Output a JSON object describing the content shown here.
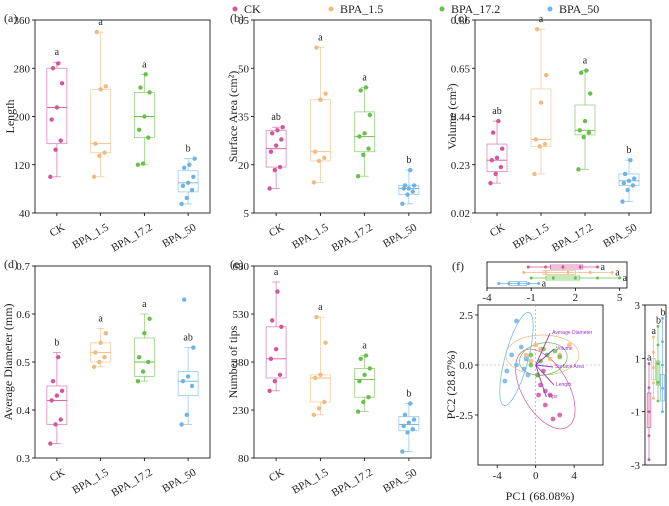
{
  "colors": {
    "CK": "#d4559c",
    "BPA_1.5": "#f3b97f",
    "BPA_17.2": "#6abf4b",
    "BPA_50": "#6fb3e6",
    "vector": "#9933cc"
  },
  "legend": {
    "items": [
      "CK",
      "BPA_1.5",
      "BPA_17.2",
      "BPA_50"
    ]
  },
  "chart_data": [
    {
      "id": "a",
      "panel_label": "(a)",
      "type": "box",
      "ylabel": "Length",
      "ylim": [
        40,
        360
      ],
      "yticks": [
        "40",
        "120",
        "200",
        "280",
        "360"
      ],
      "categories": [
        "CK",
        "BPA_1.5",
        "BPA_17.2",
        "BPA_50"
      ],
      "boxes": [
        {
          "min": 100,
          "q1": 155,
          "median": 215,
          "q3": 280,
          "max": 290,
          "letter": "a",
          "points": [
            100,
            145,
            160,
            195,
            215,
            255,
            280,
            288
          ]
        },
        {
          "min": 100,
          "q1": 140,
          "median": 155,
          "q3": 245,
          "max": 340,
          "letter": "a",
          "points": [
            100,
            135,
            140,
            155,
            245,
            250,
            340
          ]
        },
        {
          "min": 120,
          "q1": 165,
          "median": 200,
          "q3": 240,
          "max": 270,
          "letter": "a",
          "points": [
            120,
            122,
            165,
            178,
            200,
            240,
            248,
            270
          ]
        },
        {
          "min": 55,
          "q1": 75,
          "median": 90,
          "q3": 110,
          "max": 130,
          "letter": "b",
          "points": [
            55,
            65,
            78,
            85,
            90,
            100,
            115,
            120,
            130
          ]
        }
      ]
    },
    {
      "id": "b",
      "panel_label": "(b)",
      "type": "box",
      "ylabel": "Surface Area (cm²)",
      "ylim": [
        5,
        68
      ],
      "yticks": [
        "5",
        "20",
        "35",
        "50",
        "65"
      ],
      "categories": [
        "CK",
        "BPA_1.5",
        "BPA_17.2",
        "BPA_50"
      ],
      "boxes": [
        {
          "min": 13,
          "q1": 20,
          "median": 26,
          "q3": 32,
          "max": 33,
          "letter": "ab",
          "points": [
            13,
            19,
            20,
            25,
            27,
            29,
            31,
            32,
            33
          ]
        },
        {
          "min": 15,
          "q1": 22,
          "median": 25,
          "q3": 42,
          "max": 59,
          "letter": "a",
          "points": [
            15,
            22,
            23,
            25,
            42,
            44,
            59
          ]
        },
        {
          "min": 17,
          "q1": 25,
          "median": 30,
          "q3": 38,
          "max": 46,
          "letter": "a",
          "points": [
            17,
            24,
            26,
            30,
            31,
            37,
            45,
            46
          ]
        },
        {
          "min": 8,
          "q1": 11,
          "median": 13,
          "q3": 14,
          "max": 19,
          "letter": "b",
          "points": [
            8,
            11,
            12,
            13,
            13,
            14,
            14,
            19
          ]
        }
      ]
    },
    {
      "id": "c",
      "panel_label": "(c)",
      "type": "box",
      "ylabel": "Volume (cm³)",
      "ylim": [
        0.02,
        0.86
      ],
      "yticks": [
        "0.02",
        "0.23",
        "0.44",
        "0.65",
        "0.86"
      ],
      "categories": [
        "CK",
        "BPA_1.5",
        "BPA_17.2",
        "BPA_50"
      ],
      "boxes": [
        {
          "min": 0.15,
          "q1": 0.2,
          "median": 0.25,
          "q3": 0.32,
          "max": 0.42,
          "letter": "ab",
          "points": [
            0.15,
            0.19,
            0.22,
            0.25,
            0.26,
            0.3,
            0.37,
            0.42
          ]
        },
        {
          "min": 0.19,
          "q1": 0.31,
          "median": 0.34,
          "q3": 0.56,
          "max": 0.82,
          "letter": "a",
          "points": [
            0.19,
            0.31,
            0.32,
            0.34,
            0.5,
            0.62,
            0.82
          ]
        },
        {
          "min": 0.21,
          "q1": 0.36,
          "median": 0.38,
          "q3": 0.49,
          "max": 0.64,
          "letter": "a",
          "points": [
            0.21,
            0.35,
            0.37,
            0.38,
            0.42,
            0.54,
            0.63,
            0.64
          ]
        },
        {
          "min": 0.07,
          "q1": 0.14,
          "median": 0.16,
          "q3": 0.19,
          "max": 0.25,
          "letter": "b",
          "points": [
            0.07,
            0.12,
            0.14,
            0.15,
            0.16,
            0.17,
            0.19,
            0.25
          ]
        }
      ]
    },
    {
      "id": "d",
      "panel_label": "(d)",
      "type": "box",
      "ylabel": "Average Diameter (mm)",
      "ylim": [
        0.3,
        0.7
      ],
      "yticks": [
        "0.3",
        "0.4",
        "0.5",
        "0.6",
        "0.7"
      ],
      "categories": [
        "CK",
        "BPA_1.5",
        "BPA_17.2",
        "BPA_50"
      ],
      "boxes": [
        {
          "min": 0.33,
          "q1": 0.37,
          "median": 0.42,
          "q3": 0.45,
          "max": 0.52,
          "letter": "b",
          "points": [
            0.33,
            0.37,
            0.38,
            0.42,
            0.43,
            0.44,
            0.46,
            0.51
          ]
        },
        {
          "min": 0.49,
          "q1": 0.5,
          "median": 0.52,
          "q3": 0.54,
          "max": 0.57,
          "letter": "a",
          "points": [
            0.49,
            0.5,
            0.51,
            0.52,
            0.54,
            0.56
          ]
        },
        {
          "min": 0.46,
          "q1": 0.47,
          "median": 0.5,
          "q3": 0.55,
          "max": 0.6,
          "letter": "a",
          "points": [
            0.46,
            0.48,
            0.5,
            0.51,
            0.56,
            0.59
          ]
        },
        {
          "min": 0.37,
          "q1": 0.43,
          "median": 0.46,
          "q3": 0.48,
          "max": 0.53,
          "letter": "ab",
          "points": [
            0.37,
            0.39,
            0.45,
            0.46,
            0.47,
            0.53,
            0.63
          ]
        }
      ]
    },
    {
      "id": "e",
      "panel_label": "(e)",
      "type": "box",
      "ylabel": "Number of tips",
      "ylim": [
        80,
        680
      ],
      "yticks": [
        "80",
        "230",
        "380",
        "530",
        "680"
      ],
      "categories": [
        "CK",
        "BPA_1.5",
        "BPA_17.2",
        "BPA_50"
      ],
      "boxes": [
        {
          "min": 290,
          "q1": 330,
          "median": 390,
          "q3": 490,
          "max": 630,
          "letter": "a",
          "points": [
            290,
            320,
            340,
            390,
            420,
            490,
            510,
            600
          ]
        },
        {
          "min": 215,
          "q1": 255,
          "median": 330,
          "q3": 340,
          "max": 520,
          "letter": "a",
          "points": [
            215,
            235,
            255,
            330,
            340,
            440,
            520
          ]
        },
        {
          "min": 225,
          "q1": 270,
          "median": 325,
          "q3": 360,
          "max": 400,
          "letter": "a",
          "points": [
            225,
            255,
            270,
            320,
            340,
            360,
            390,
            400
          ]
        },
        {
          "min": 100,
          "q1": 165,
          "median": 185,
          "q3": 210,
          "max": 250,
          "letter": "b",
          "points": [
            100,
            160,
            170,
            180,
            190,
            200,
            215,
            250
          ]
        }
      ]
    },
    {
      "id": "f",
      "panel_label": "(f)",
      "type": "scatter",
      "xlabel": "PC1 (68.08%)",
      "ylabel": "PC2 (28.87%)",
      "xlim": [
        -6,
        7
      ],
      "ylim": [
        -5,
        3
      ],
      "xticks": [
        "-4",
        "0",
        "4"
      ],
      "yticks": [
        "-2.5",
        "0.0",
        "2.5"
      ],
      "top_ticks": [
        "-4",
        "-1",
        "2",
        "5"
      ],
      "right_ticks": [
        "3",
        "1",
        "-1",
        "-3"
      ],
      "vectors": [
        {
          "label": "Average Diameter",
          "x": 1.5,
          "y": 1.6
        },
        {
          "label": "Volume",
          "x": 1.9,
          "y": 0.8
        },
        {
          "label": "Surface Area",
          "x": 1.8,
          "y": -0.1
        },
        {
          "label": "Length",
          "x": 1.9,
          "y": -1.0
        },
        {
          "label": "Tips",
          "x": 1.1,
          "y": -1.6
        }
      ],
      "series": [
        {
          "name": "CK",
          "points": [
            [
              0.5,
              -1.0
            ],
            [
              1.0,
              -1.3
            ],
            [
              1.5,
              -1.5
            ],
            [
              1.0,
              -2.0
            ],
            [
              2.5,
              -2.5
            ],
            [
              0.2,
              -0.5
            ],
            [
              0.3,
              -1.5
            ],
            [
              1.8,
              -2.7
            ],
            [
              0.8,
              -0.3
            ]
          ]
        },
        {
          "name": "BPA_1.5",
          "points": [
            [
              0.5,
              0.8
            ],
            [
              2.5,
              0.5
            ],
            [
              3.5,
              1.0
            ],
            [
              -1.0,
              0.5
            ],
            [
              0.0,
              1.0
            ],
            [
              1.5,
              0.3
            ],
            [
              -0.5,
              0.2
            ]
          ]
        },
        {
          "name": "BPA_17.2",
          "points": [
            [
              0.2,
              -0.5
            ],
            [
              -0.5,
              0.0
            ],
            [
              1.2,
              0.5
            ],
            [
              0.8,
              0.8
            ],
            [
              2.0,
              0.7
            ],
            [
              -0.5,
              0.5
            ],
            [
              0.5,
              0.2
            ],
            [
              2.5,
              0.4
            ]
          ]
        },
        {
          "name": "BPA_50",
          "points": [
            [
              -2.0,
              2.2
            ],
            [
              -3.2,
              -0.8
            ],
            [
              -2.5,
              0.5
            ],
            [
              -2.0,
              0.0
            ],
            [
              -1.0,
              0.3
            ],
            [
              -0.8,
              -0.5
            ],
            [
              -1.5,
              0.9
            ],
            [
              -1.2,
              -0.2
            ],
            [
              -3.0,
              -0.3
            ]
          ]
        }
      ],
      "top_box_letters": [
        "a",
        "a",
        "a",
        "a"
      ],
      "right_box_letters": [
        "a",
        "a",
        "b",
        "b"
      ]
    }
  ]
}
